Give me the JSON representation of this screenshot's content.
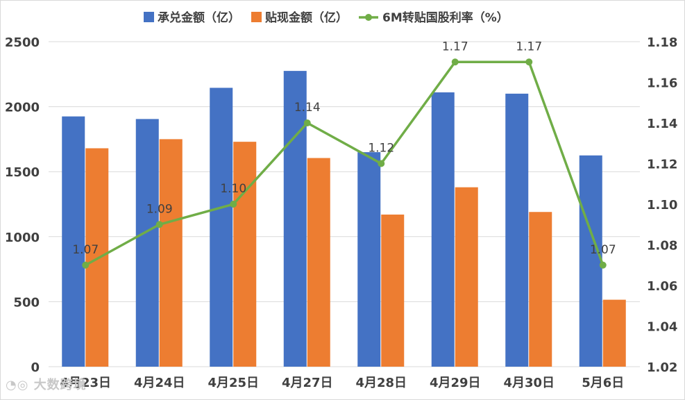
{
  "chart_data": {
    "type": "bar",
    "categories": [
      "4月23日",
      "4月24日",
      "4月25日",
      "4月27日",
      "4月28日",
      "4月29日",
      "4月30日",
      "5月6日"
    ],
    "series": [
      {
        "name": "承兑金额（亿）",
        "kind": "bar",
        "axis": "left",
        "color": "#4472C4",
        "values": [
          1925,
          1905,
          2145,
          2275,
          1650,
          2110,
          2100,
          1625
        ]
      },
      {
        "name": "贴现金额（亿）",
        "kind": "bar",
        "axis": "left",
        "color": "#ED7D31",
        "values": [
          1680,
          1750,
          1730,
          1605,
          1170,
          1380,
          1190,
          515
        ]
      },
      {
        "name": "6M转贴国股利率（%）",
        "kind": "line",
        "axis": "right",
        "color": "#70AD47",
        "values": [
          1.07,
          1.09,
          1.1,
          1.14,
          1.12,
          1.17,
          1.17,
          1.07
        ],
        "labels": [
          "1.07",
          "1.09",
          "1.10",
          "1.14",
          "1.12",
          "1.17",
          "1.17",
          "1.07"
        ]
      }
    ],
    "left_axis": {
      "min": 0,
      "max": 2500,
      "ticks": [
        "0",
        "500",
        "1000",
        "1500",
        "2000",
        "2500"
      ]
    },
    "right_axis": {
      "min": 1.02,
      "max": 1.18,
      "ticks": [
        "1.02",
        "1.04",
        "1.06",
        "1.08",
        "1.10",
        "1.12",
        "1.14",
        "1.16",
        "1.18"
      ]
    },
    "grid": true,
    "legend_position": "top"
  },
  "watermark": "大数跨境"
}
